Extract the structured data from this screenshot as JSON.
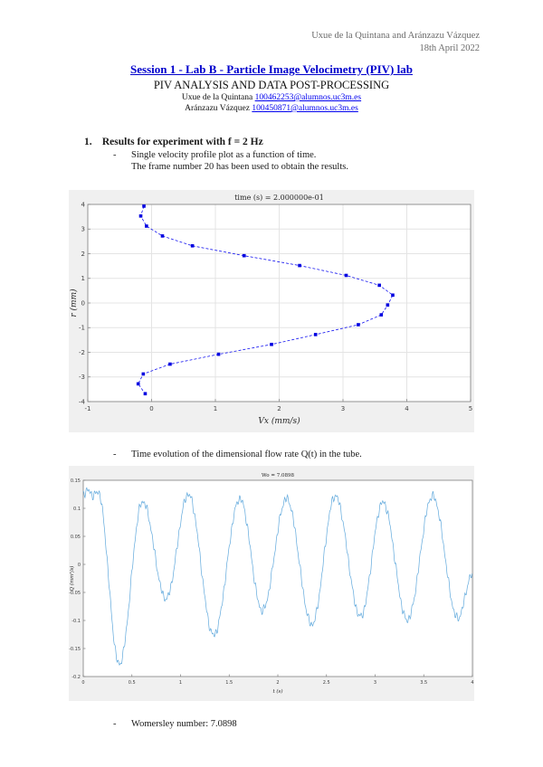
{
  "header": {
    "authors": "Uxue de la Quintana and Aránzazu Vázquez",
    "date": "18th April 2022"
  },
  "title": {
    "session": "Session 1 - Lab B - Particle Image Velocimetry (PIV) lab",
    "subtitle": "PIV ANALYSIS AND DATA POST-PROCESSING"
  },
  "authors": [
    {
      "name": "Uxue de la Quintana",
      "email": "100462253@alumnos.uc3m.es"
    },
    {
      "name": "Aránzazu Vázquez",
      "email": "100450871@alumnos.uc3m.es"
    }
  ],
  "section": {
    "number": "1.",
    "heading": "Results for experiment with f = 2 Hz"
  },
  "bullets": {
    "dash": "-",
    "b1_line1": "Single velocity profile plot as a function of time.",
    "b1_line2": "The frame number 20 has been used to obtain the results.",
    "b2": "Time evolution of the dimensional flow rate Q(t) in the tube.",
    "b3": "Womersley number: 7.0898"
  },
  "chart_data": [
    {
      "type": "line",
      "title": "time (s) = 2.000000e-01",
      "xlabel": "Vx (mm/s)",
      "ylabel": "r (mm)",
      "xlim": [
        -1,
        5
      ],
      "ylim": [
        -4,
        4
      ],
      "xticks": [
        -1,
        0,
        1,
        2,
        3,
        4,
        5
      ],
      "yticks": [
        -4,
        -3,
        -2,
        -1,
        0,
        1,
        2,
        3,
        4
      ],
      "grid": true,
      "line_color": "#1414f0",
      "marker_color": "#0000e0",
      "line_style": "dashed-square-markers",
      "points_vx_r": [
        [
          -0.12,
          3.93
        ],
        [
          -0.17,
          3.53
        ],
        [
          -0.08,
          3.12
        ],
        [
          0.17,
          2.72
        ],
        [
          0.64,
          2.32
        ],
        [
          1.45,
          1.92
        ],
        [
          2.32,
          1.52
        ],
        [
          3.05,
          1.12
        ],
        [
          3.57,
          0.72
        ],
        [
          3.78,
          0.32
        ],
        [
          3.7,
          -0.08
        ],
        [
          3.6,
          -0.48
        ],
        [
          3.24,
          -0.88
        ],
        [
          2.57,
          -1.28
        ],
        [
          1.88,
          -1.68
        ],
        [
          1.05,
          -2.08
        ],
        [
          0.29,
          -2.48
        ],
        [
          -0.13,
          -2.88
        ],
        [
          -0.21,
          -3.28
        ],
        [
          -0.1,
          -3.68
        ]
      ]
    },
    {
      "type": "line",
      "title": "Wo = 7.0898",
      "xlabel": "t (s)",
      "ylabel": "Q (mm³/s)",
      "xlim": [
        0,
        4
      ],
      "ylim": [
        -0.2,
        0.15
      ],
      "xticks": [
        0,
        0.5,
        1,
        1.5,
        2,
        2.5,
        3,
        3.5,
        4
      ],
      "yticks": [
        0.15,
        0.1,
        0.05,
        0,
        -0.05,
        -0.1,
        -0.15,
        -0.2
      ],
      "grid": false,
      "line_color": "#5fa8dc",
      "line_style": "noisy-solid",
      "keypoints_t_q": [
        [
          0,
          0.127
        ],
        [
          0.06,
          0.132
        ],
        [
          0.1,
          0.122
        ],
        [
          0.15,
          0.13
        ],
        [
          0.37,
          -0.178
        ],
        [
          0.61,
          0.112
        ],
        [
          0.85,
          -0.061
        ],
        [
          1.08,
          0.125
        ],
        [
          1.34,
          -0.126
        ],
        [
          1.61,
          0.117
        ],
        [
          1.84,
          -0.082
        ],
        [
          2.09,
          0.117
        ],
        [
          2.35,
          -0.107
        ],
        [
          2.59,
          0.122
        ],
        [
          2.85,
          -0.093
        ],
        [
          3.08,
          0.111
        ],
        [
          3.33,
          -0.099
        ],
        [
          3.59,
          0.122
        ],
        [
          3.85,
          -0.096
        ],
        [
          4.0,
          -0.018
        ]
      ]
    }
  ]
}
